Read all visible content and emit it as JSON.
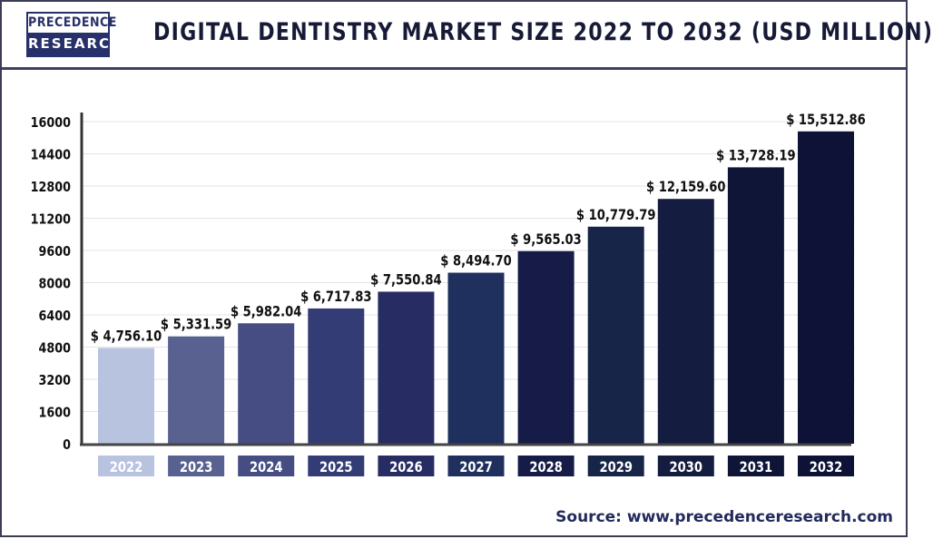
{
  "header": {
    "logo_line1": "PRECEDENCE",
    "logo_line2": "RESEARCH",
    "title": "DIGITAL DENTISTRY MARKET SIZE 2022 TO 2032 (USD MILLION)"
  },
  "source": "Source: www.precedenceresearch.com",
  "chart_data": {
    "type": "bar",
    "title": "DIGITAL DENTISTRY MARKET SIZE 2022 TO 2032 (USD MILLION)",
    "categories": [
      "2022",
      "2023",
      "2024",
      "2025",
      "2026",
      "2027",
      "2028",
      "2029",
      "2030",
      "2031",
      "2032"
    ],
    "values": [
      4756.1,
      5331.59,
      5982.04,
      6717.83,
      7550.84,
      8494.7,
      9565.03,
      10779.79,
      12159.6,
      13728.19,
      15512.86
    ],
    "data_labels": [
      "$ 4,756.10",
      "$ 5,331.59",
      "$ 5,982.04",
      "$ 6,717.83",
      "$ 7,550.84",
      "$ 8,494.70",
      "$ 9,565.03",
      "$ 10,779.79",
      "$ 12,159.60",
      "$ 13,728.19",
      "$ 15,512.86"
    ],
    "yticks": [
      "0",
      "1600",
      "3200",
      "4800",
      "6400",
      "8000",
      "9600",
      "11200",
      "12800",
      "14400",
      "16000"
    ],
    "ylim": [
      0,
      16000
    ],
    "grid": true,
    "xlabel": "",
    "ylabel": "",
    "colors": [
      "#b8c3e0",
      "#58618f",
      "#454d83",
      "#343c76",
      "#272d63",
      "#1f2f5e",
      "#161c47",
      "#172548",
      "#141d3f",
      "#0f1536",
      "#0d1236"
    ]
  }
}
